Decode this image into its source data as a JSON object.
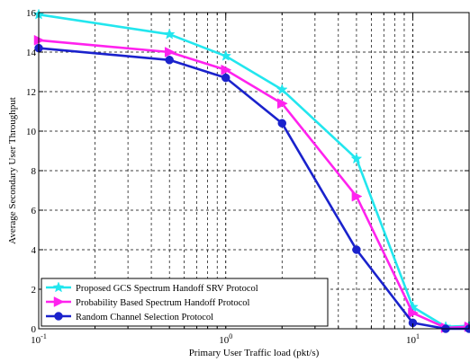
{
  "chart_data": {
    "type": "line",
    "title": "",
    "xlabel": "Primary User Traffic load (pkt/s)",
    "ylabel": "Average Secondary User Throughput",
    "xscale": "log",
    "xlim": [
      0.1,
      20
    ],
    "ylim": [
      0,
      16
    ],
    "grid": true,
    "legend_position": "bottom-left",
    "x_tick_labels": [
      {
        "base": "10",
        "exp": "-1",
        "value": 0.1
      },
      {
        "base": "10",
        "exp": "0",
        "value": 1
      },
      {
        "base": "10",
        "exp": "1",
        "value": 10
      }
    ],
    "y_ticks": [
      0,
      2,
      4,
      6,
      8,
      10,
      12,
      14,
      16
    ],
    "y_tick_labels": [
      "0",
      "2",
      "4",
      "6",
      "8",
      "10",
      "12",
      "14",
      "16"
    ],
    "series": [
      {
        "name": "Proposed GCS Spectrum Handoff SRV Protocol",
        "color": "#22e6ee",
        "marker": "star",
        "x": [
          0.1,
          0.5,
          1,
          2,
          5,
          10,
          15,
          20
        ],
        "y": [
          15.9,
          14.9,
          13.8,
          12.1,
          8.6,
          1.1,
          0.1,
          0.15
        ]
      },
      {
        "name": "Probability Based Spectrum Handoff Protocol",
        "color": "#ff22ee",
        "marker": "triangle-right",
        "x": [
          0.1,
          0.5,
          1,
          2,
          5,
          10,
          15,
          20
        ],
        "y": [
          14.6,
          14.0,
          13.1,
          11.4,
          6.7,
          0.8,
          0.05,
          0.1
        ]
      },
      {
        "name": "Random Channel Selection Protocol",
        "color": "#1a22cc",
        "marker": "circle",
        "x": [
          0.1,
          0.5,
          1,
          2,
          5,
          10,
          15,
          20
        ],
        "y": [
          14.2,
          13.6,
          12.7,
          10.4,
          4.0,
          0.3,
          0.0,
          0.0
        ]
      }
    ]
  }
}
